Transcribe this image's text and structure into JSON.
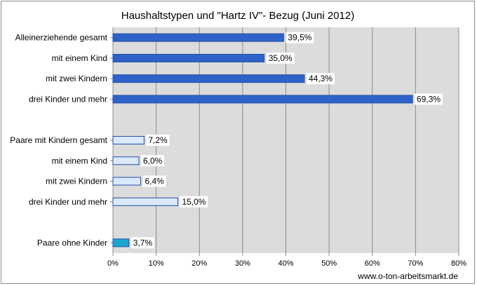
{
  "source_note": "www.o-ton-arbeitsmarkt.de",
  "colors": {
    "plot_background": "#dcdcdc",
    "gridline": "#8c8c8c",
    "group_single_parents": "#2f62c9",
    "group_couples_with_children": "#dbe9fb",
    "group_couples_without_children": "#19a7cf",
    "bar_outline": "#1f4fa8"
  },
  "chart_data": {
    "type": "bar",
    "orientation": "horizontal",
    "title": "Haushaltstypen und \"Hartz IV\"- Bezug (Juni 2012)",
    "xlabel": "",
    "ylabel": "",
    "xlim": [
      0,
      80
    ],
    "x_tick_labels": [
      "0%",
      "10%",
      "20%",
      "30%",
      "40%",
      "50%",
      "60%",
      "70%",
      "80%"
    ],
    "grid": "vertical",
    "legend": "none",
    "categories": [
      "Alleinerziehende gesamt",
      "mit einem Kind",
      "mit zwei Kindern",
      "drei Kinder und mehr",
      "",
      "Paare mit Kindern gesamt",
      "mit einem Kind",
      "mit zwei Kindern",
      "drei Kinder und mehr",
      "",
      "Paare ohne Kinder"
    ],
    "values": [
      39.5,
      35.0,
      44.3,
      69.3,
      null,
      7.2,
      6.0,
      6.4,
      15.0,
      null,
      3.7
    ],
    "value_labels": [
      "39,5%",
      "35,0%",
      "44,3%",
      "69,3%",
      "",
      "7,2%",
      "6,0%",
      "6,4%",
      "15,0%",
      "",
      "3,7%"
    ],
    "groups": [
      "single_parents",
      "single_parents",
      "single_parents",
      "single_parents",
      "",
      "couples_with_children",
      "couples_with_children",
      "couples_with_children",
      "couples_with_children",
      "",
      "couples_without_children"
    ]
  }
}
